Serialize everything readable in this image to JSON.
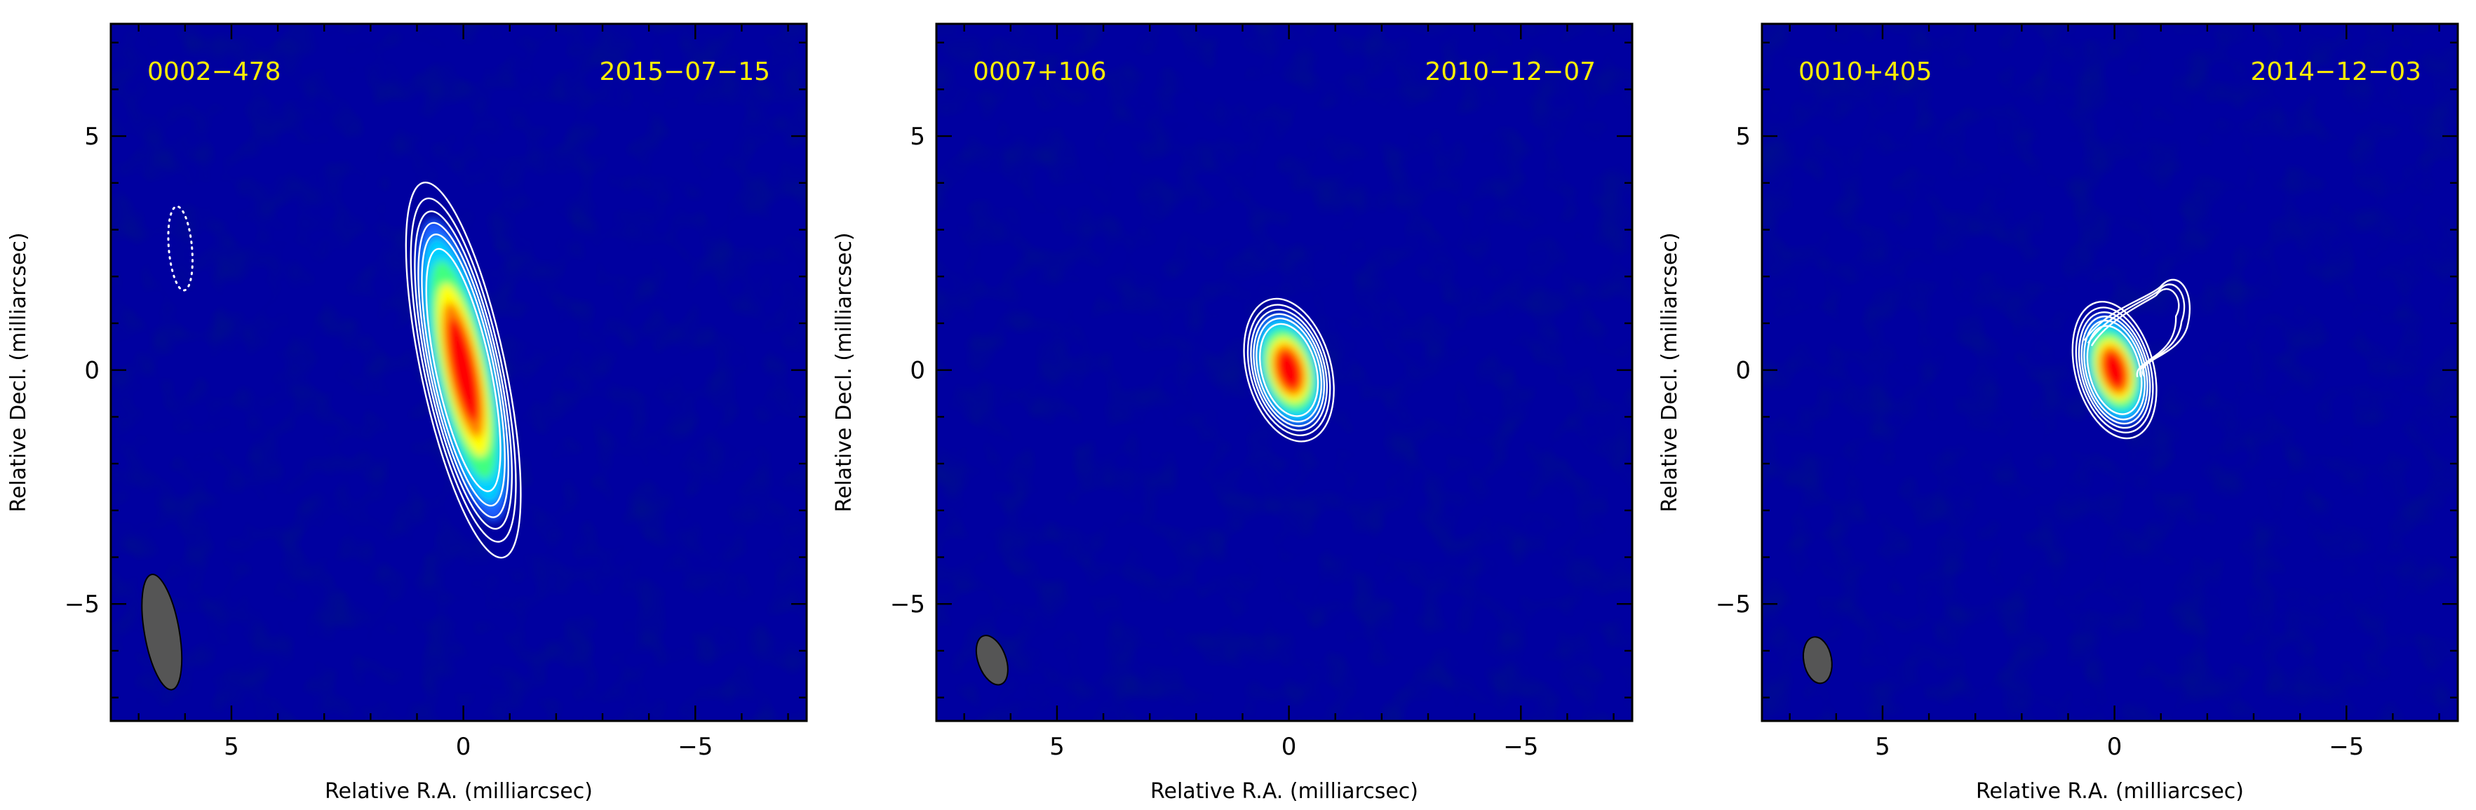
{
  "chart_data": [
    {
      "type": "heatmap",
      "source": "0002−478",
      "date": "2015−07−15",
      "xlabel": "Relative R.A. (milliarcsec)",
      "ylabel": "Relative Decl. (milliarcsec)",
      "xlim": [
        7.6,
        -7.4
      ],
      "ylim": [
        -7.5,
        7.4
      ],
      "xticks": [
        {
          "value": 5,
          "label": "5"
        },
        {
          "value": 0,
          "label": "0"
        },
        {
          "value": -5,
          "label": "−5"
        }
      ],
      "yticks": [
        {
          "value": 5,
          "label": "5"
        },
        {
          "value": 0,
          "label": "0"
        },
        {
          "value": -5,
          "label": "−5"
        }
      ],
      "colormap": [
        "#0000a0",
        "#00d0ff",
        "#40ff80",
        "#ffff00",
        "#ff8000",
        "#ff0000"
      ],
      "source_component": {
        "x": 0,
        "y": 0,
        "major_axis": 6.3,
        "minor_axis": 1.4,
        "pa_deg": -12
      },
      "contour_levels": [
        1,
        2,
        3,
        4,
        5,
        6
      ],
      "extra_feature": {
        "x": 6.1,
        "y": 2.6,
        "major_axis": 1.8,
        "minor_axis": 0.5,
        "pa_deg": -5,
        "style": "dotted"
      },
      "beam": {
        "x": 6.5,
        "y": -5.6,
        "major_axis": 2.5,
        "minor_axis": 0.75,
        "pa_deg": -10
      }
    },
    {
      "type": "heatmap",
      "source": "0007+106",
      "date": "2010−12−07",
      "xlabel": "Relative R.A. (milliarcsec)",
      "ylabel": "Relative Decl. (milliarcsec)",
      "xlim": [
        7.6,
        -7.4
      ],
      "ylim": [
        -7.5,
        7.4
      ],
      "xticks": [
        {
          "value": 5,
          "label": "5"
        },
        {
          "value": 0,
          "label": "0"
        },
        {
          "value": -5,
          "label": "−5"
        }
      ],
      "yticks": [
        {
          "value": 5,
          "label": "5"
        },
        {
          "value": 0,
          "label": "0"
        },
        {
          "value": -5,
          "label": "−5"
        }
      ],
      "colormap": [
        "#0000a0",
        "#00d0ff",
        "#40ff80",
        "#ffff00",
        "#ff8000",
        "#ff0000"
      ],
      "source_component": {
        "x": 0,
        "y": 0,
        "major_axis": 2.4,
        "minor_axis": 1.4,
        "pa_deg": -15
      },
      "contour_levels": [
        1,
        2,
        3,
        4,
        5,
        6
      ],
      "beam": {
        "x": 6.4,
        "y": -6.2,
        "major_axis": 1.1,
        "minor_axis": 0.6,
        "pa_deg": -20
      }
    },
    {
      "type": "heatmap",
      "source": "0010+405",
      "date": "2014−12−03",
      "xlabel": "Relative R.A. (milliarcsec)",
      "ylabel": "Relative Decl. (milliarcsec)",
      "xlim": [
        7.6,
        -7.4
      ],
      "ylim": [
        -7.5,
        7.4
      ],
      "xticks": [
        {
          "value": 5,
          "label": "5"
        },
        {
          "value": 0,
          "label": "0"
        },
        {
          "value": -5,
          "label": "−5"
        }
      ],
      "yticks": [
        {
          "value": 5,
          "label": "5"
        },
        {
          "value": 0,
          "label": "0"
        },
        {
          "value": -5,
          "label": "−5"
        }
      ],
      "colormap": [
        "#0000a0",
        "#00d0ff",
        "#40ff80",
        "#ffff00",
        "#ff8000",
        "#ff0000"
      ],
      "source_component": {
        "x": 0,
        "y": 0,
        "major_axis": 2.3,
        "minor_axis": 1.3,
        "pa_deg": -15
      },
      "contour_levels": [
        1,
        2,
        3,
        4,
        5,
        6
      ],
      "jet_component": {
        "x": -0.9,
        "y": 1.6,
        "extent": 1.2
      },
      "beam": {
        "x": 6.4,
        "y": -6.2,
        "major_axis": 1.0,
        "minor_axis": 0.6,
        "pa_deg": -10
      }
    }
  ]
}
